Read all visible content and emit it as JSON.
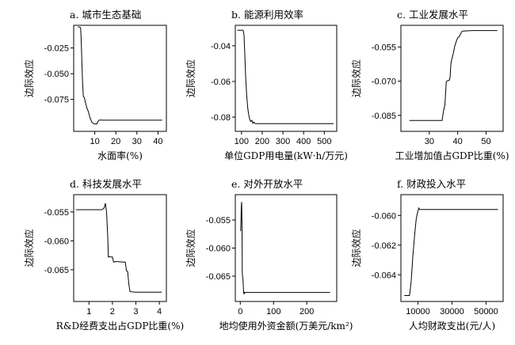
{
  "chart_data": [
    {
      "type": "line",
      "title": "a. 城市生态基础",
      "xlabel": "水面率(%)",
      "ylabel": "边际效应",
      "xlim": [
        0,
        44
      ],
      "ylim": [
        -0.106,
        -0.003
      ],
      "xticks": [
        10,
        20,
        30,
        40
      ],
      "xtick_labels": [
        "10",
        "20",
        "30",
        "40"
      ],
      "yticks": [
        -0.025,
        -0.05,
        -0.075
      ],
      "ytick_labels": [
        "-0.025",
        "-0.050",
        "-0.075"
      ],
      "series": [
        {
          "x": [
            2.0,
            3.0,
            3.3,
            3.6,
            3.9,
            4.2,
            4.6,
            5.0,
            5.6,
            6.2,
            7.0,
            7.8,
            8.6,
            9.4,
            10.0,
            11.0,
            11.3,
            11.8,
            12.3,
            13.0,
            14.0,
            20.0,
            30.0,
            42.0
          ],
          "y": [
            -0.0045,
            -0.0048,
            -0.006,
            -0.02,
            -0.04,
            -0.058,
            -0.072,
            -0.073,
            -0.078,
            -0.083,
            -0.087,
            -0.093,
            -0.097,
            -0.0985,
            -0.0988,
            -0.0988,
            -0.0975,
            -0.0955,
            -0.095,
            -0.095,
            -0.0952,
            -0.0952,
            -0.0952,
            -0.0952
          ]
        }
      ]
    },
    {
      "type": "line",
      "title": "b. 能源利用效率",
      "xlabel": "单位GDP用电量(kW·h/万元)",
      "ylabel": "边际效应",
      "xlim": [
        70,
        560
      ],
      "ylim": [
        -0.088,
        -0.0285
      ],
      "xticks": [
        100,
        200,
        300,
        400,
        500
      ],
      "xtick_labels": [
        "100",
        "200",
        "300",
        "400",
        "500"
      ],
      "yticks": [
        -0.04,
        -0.06,
        -0.08
      ],
      "ytick_labels": [
        "-0.04",
        "-0.06",
        "-0.08"
      ],
      "series": [
        {
          "x": [
            80,
            108,
            112,
            116,
            120,
            125,
            130,
            135,
            140,
            145,
            150,
            155,
            160,
            165,
            170,
            200,
            300,
            400,
            545
          ],
          "y": [
            -0.0313,
            -0.0313,
            -0.034,
            -0.045,
            -0.058,
            -0.068,
            -0.075,
            -0.079,
            -0.0815,
            -0.0825,
            -0.0818,
            -0.0835,
            -0.0828,
            -0.0836,
            -0.0837,
            -0.0837,
            -0.0837,
            -0.0837,
            -0.0837
          ]
        }
      ]
    },
    {
      "type": "line",
      "title": "c. 工业发展水平",
      "xlabel": "工业增加值占GDP比重(%)",
      "ylabel": "边际效应",
      "xlim": [
        20,
        56
      ],
      "ylim": [
        -0.092,
        -0.0455
      ],
      "xticks": [
        30,
        40,
        50
      ],
      "xtick_labels": [
        "30",
        "40",
        "50"
      ],
      "yticks": [
        -0.055,
        -0.07,
        -0.085
      ],
      "ytick_labels": [
        "-0.055",
        "-0.070",
        "-0.085"
      ],
      "series": [
        {
          "x": [
            23.0,
            34.5,
            35.0,
            35.5,
            36.0,
            36.5,
            37.0,
            37.3,
            37.6,
            38.0,
            38.5,
            39.0,
            39.5,
            40.0,
            40.5,
            41.0,
            41.5,
            42.0,
            45.0,
            50.0,
            54.0
          ],
          "y": [
            -0.0872,
            -0.0872,
            -0.083,
            -0.0805,
            -0.0702,
            -0.0697,
            -0.0697,
            -0.0685,
            -0.0622,
            -0.06,
            -0.0575,
            -0.0545,
            -0.0525,
            -0.051,
            -0.0505,
            -0.0493,
            -0.0482,
            -0.048,
            -0.0478,
            -0.0478,
            -0.0478
          ]
        }
      ]
    },
    {
      "type": "line",
      "title": "d. 科技发展水平",
      "xlabel": "R&D经费支出占GDP比重(%)",
      "ylabel": "边际效应",
      "xlim": [
        0.35,
        4.3
      ],
      "ylim": [
        -0.0705,
        -0.052
      ],
      "xticks": [
        1,
        2,
        3,
        4
      ],
      "xtick_labels": [
        "1",
        "2",
        "3",
        "4"
      ],
      "yticks": [
        -0.055,
        -0.06,
        -0.065
      ],
      "ytick_labels": [
        "-0.055",
        "-0.060",
        "-0.065"
      ],
      "series": [
        {
          "x": [
            0.45,
            1.55,
            1.65,
            1.7,
            1.75,
            1.8,
            1.83,
            1.86,
            1.9,
            2.0,
            2.05,
            2.1,
            2.2,
            2.55,
            2.6,
            2.65,
            2.7,
            2.75,
            3.0,
            3.5,
            4.1
          ],
          "y": [
            -0.0546,
            -0.0546,
            -0.0543,
            -0.0535,
            -0.055,
            -0.059,
            -0.0628,
            -0.0627,
            -0.0628,
            -0.0628,
            -0.0637,
            -0.0636,
            -0.0636,
            -0.0637,
            -0.0652,
            -0.0653,
            -0.0675,
            -0.0688,
            -0.0689,
            -0.0689,
            -0.0689
          ]
        }
      ]
    },
    {
      "type": "line",
      "title": "e. 对外开放水平",
      "xlabel": "地均使用外资金额(万美元/km²)",
      "ylabel": "边际效应",
      "xlim": [
        -15,
        290
      ],
      "ylim": [
        -0.0695,
        -0.0505
      ],
      "xticks": [
        0,
        100,
        200
      ],
      "xtick_labels": [
        "0",
        "100",
        "200"
      ],
      "yticks": [
        -0.055,
        -0.06,
        -0.065
      ],
      "ytick_labels": [
        "-0.055",
        "-0.060",
        "-0.065"
      ],
      "series": [
        {
          "x": [
            1,
            2,
            3,
            4,
            5,
            6,
            7,
            8,
            9,
            10,
            11,
            12,
            13,
            15,
            20,
            50,
            100,
            200,
            270
          ],
          "y": [
            -0.057,
            -0.0555,
            -0.0525,
            -0.0518,
            -0.0555,
            -0.0645,
            -0.0652,
            -0.0655,
            -0.0668,
            -0.0678,
            -0.0682,
            -0.0678,
            -0.068,
            -0.0679,
            -0.0679,
            -0.0679,
            -0.0679,
            -0.0679,
            -0.0679
          ]
        }
      ]
    },
    {
      "type": "line",
      "title": "f. 财政投入水平",
      "xlabel": "人均财政支出(元/人)",
      "ylabel": "边际效应",
      "xlim": [
        0,
        60000
      ],
      "ylim": [
        -0.0658,
        -0.0586
      ],
      "xticks": [
        10000,
        30000,
        50000
      ],
      "xtick_labels": [
        "10000",
        "30000",
        "50000"
      ],
      "yticks": [
        -0.06,
        -0.062,
        -0.064
      ],
      "ytick_labels": [
        "-0.060",
        "-0.062",
        "-0.064"
      ],
      "series": [
        {
          "x": [
            2000,
            5000,
            6000,
            7000,
            8000,
            9000,
            10000,
            10500,
            11000,
            12000,
            15000,
            20000,
            30000,
            40000,
            50000,
            57000
          ],
          "y": [
            -0.0654,
            -0.0654,
            -0.0645,
            -0.0628,
            -0.0614,
            -0.0602,
            -0.0597,
            -0.0595,
            -0.0596,
            -0.0596,
            -0.0596,
            -0.0596,
            -0.0596,
            -0.0596,
            -0.0596,
            -0.0596
          ]
        }
      ]
    }
  ]
}
